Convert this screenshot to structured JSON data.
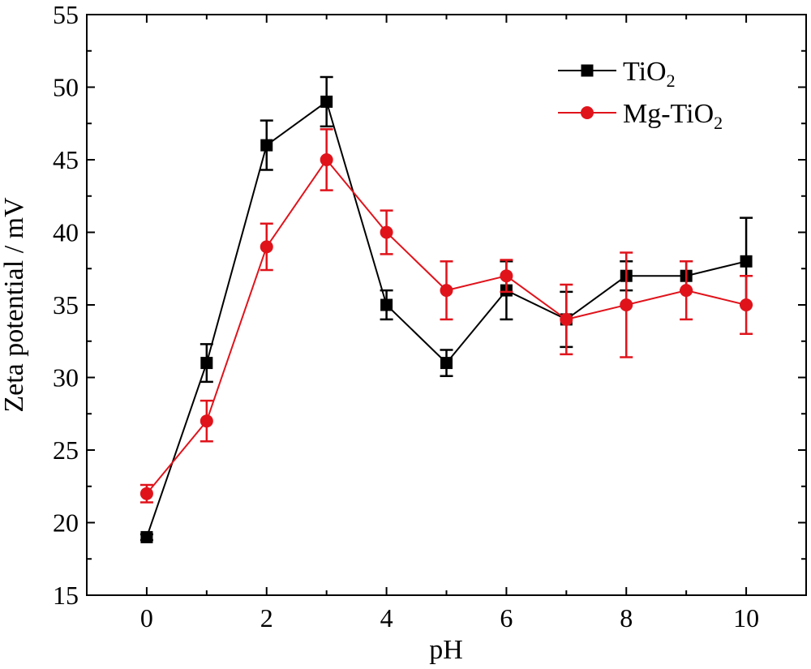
{
  "chart_data": {
    "type": "line",
    "title": "",
    "xlabel": "pH",
    "ylabel": "Zeta potential / mV",
    "xlim": [
      -1,
      11
    ],
    "ylim": [
      15,
      55
    ],
    "xticks": [
      0,
      2,
      4,
      6,
      8,
      10
    ],
    "xticks_minor": [
      1,
      3,
      5,
      7,
      9
    ],
    "yticks": [
      15,
      20,
      25,
      30,
      35,
      40,
      45,
      50,
      55
    ],
    "grid": false,
    "legend_position": "top-right",
    "series": [
      {
        "name": "TiO",
        "name_subscript": "2",
        "color": "#000000",
        "marker": "square",
        "x": [
          0,
          1,
          2,
          3,
          4,
          5,
          6,
          7,
          8,
          9,
          10
        ],
        "y": [
          19,
          31,
          46,
          49,
          35,
          31,
          36,
          34,
          37,
          37,
          38
        ],
        "err": [
          0.2,
          1.3,
          1.7,
          1.7,
          1.0,
          0.9,
          2.0,
          1.9,
          1.0,
          1.0,
          3.0
        ]
      },
      {
        "name": "Mg-TiO",
        "name_subscript": "2",
        "color": "#e0131b",
        "marker": "circle",
        "x": [
          0,
          1,
          2,
          3,
          4,
          5,
          6,
          7,
          8,
          9,
          10
        ],
        "y": [
          22,
          27,
          39,
          45,
          40,
          36,
          37,
          34,
          35,
          36,
          35
        ],
        "err": [
          0.6,
          1.4,
          1.6,
          2.1,
          1.5,
          2.0,
          1.1,
          2.4,
          3.6,
          2.0,
          2.0
        ]
      }
    ]
  }
}
